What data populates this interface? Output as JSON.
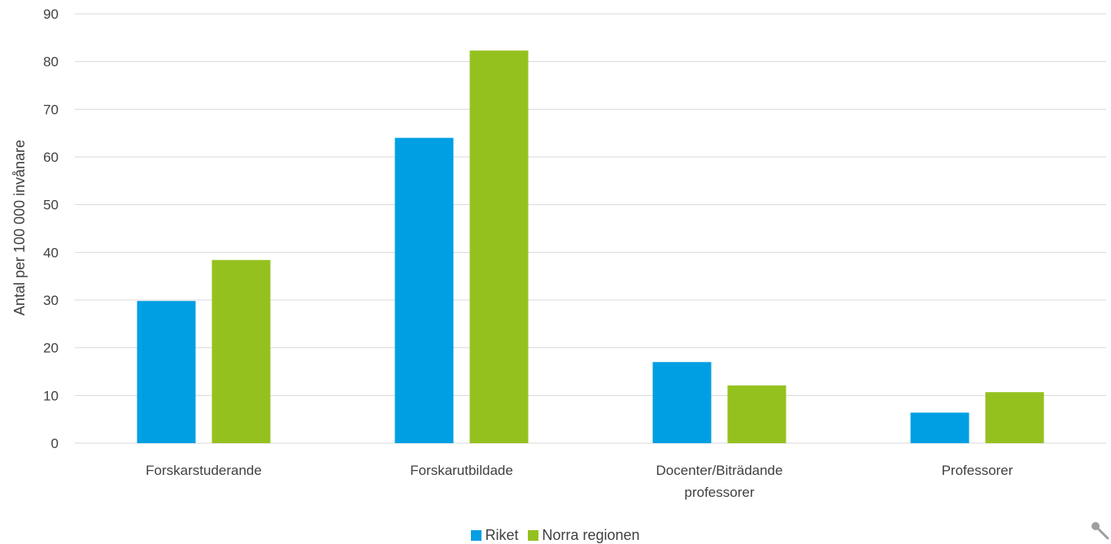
{
  "chart_data": {
    "type": "bar",
    "title": "",
    "xlabel": "",
    "ylabel": "Antal per 100 000 invånare",
    "ylim": [
      0,
      90
    ],
    "yticks": [
      0,
      10,
      20,
      30,
      40,
      50,
      60,
      70,
      80,
      90
    ],
    "grid": true,
    "legend_position": "bottom",
    "categories": [
      [
        "Forskarstuderande"
      ],
      [
        "Forskarutbildade"
      ],
      [
        "Docenter/Biträdande",
        "professorer"
      ],
      [
        "Professorer"
      ]
    ],
    "series": [
      {
        "name": "Riket",
        "color": "#009FE3",
        "values": [
          29.8,
          64,
          17,
          6.4
        ]
      },
      {
        "name": "Norra regionen",
        "color": "#95C11F",
        "values": [
          38.4,
          82.3,
          12.1,
          10.7
        ]
      }
    ]
  },
  "icons": {
    "corner": "magnifier-icon"
  }
}
